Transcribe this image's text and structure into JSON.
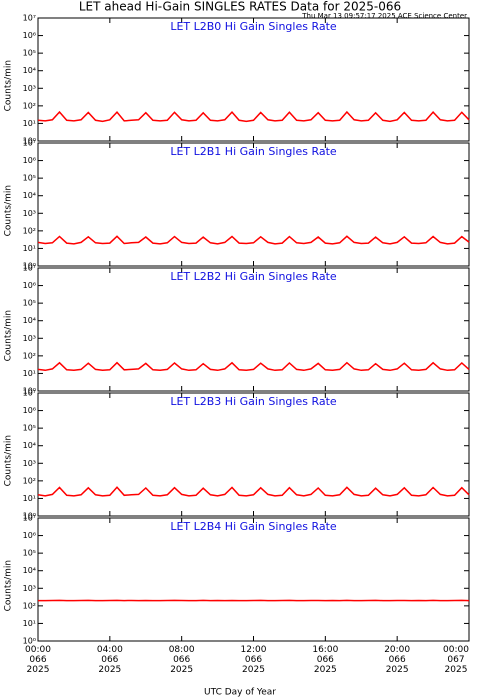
{
  "title": "LET ahead Hi-Gain SINGLES RATES Data for 2025-066",
  "timestamp": "Thu Mar 13 09:57:17 2025 ACE Science Center",
  "xlabel": "UTC Day of Year",
  "chart_data": [
    {
      "type": "line",
      "title": "LET L2B0 Hi Gain Singles Rate",
      "ylabel": "Counts/min",
      "color": "#ff0000",
      "log_y": true,
      "xlim": [
        0,
        24
      ],
      "ylim": [
        1,
        10000000
      ],
      "yticks": [
        {
          "value": 1,
          "label": "10⁰"
        },
        {
          "value": 10,
          "label": "10¹"
        },
        {
          "value": 100,
          "label": "10²"
        },
        {
          "value": 1000,
          "label": "10³"
        },
        {
          "value": 10000,
          "label": "10⁴"
        },
        {
          "value": 100000,
          "label": "10⁵"
        },
        {
          "value": 1000000,
          "label": "10⁶"
        },
        {
          "value": 10000000,
          "label": "10⁷"
        }
      ],
      "x": [
        0,
        0.4,
        0.8,
        1.2,
        1.6,
        2,
        2.4,
        2.8,
        3.2,
        3.6,
        4,
        4.4,
        4.8,
        5.2,
        5.6,
        6,
        6.4,
        6.8,
        7.2,
        7.6,
        8,
        8.4,
        8.8,
        9.2,
        9.6,
        10,
        10.4,
        10.8,
        11.2,
        11.6,
        12,
        12.4,
        12.8,
        13.2,
        13.6,
        14,
        14.4,
        14.8,
        15.2,
        15.6,
        16,
        16.4,
        16.8,
        17.2,
        17.6,
        18,
        18.4,
        18.8,
        19.2,
        19.6,
        20,
        20.4,
        20.8,
        21.2,
        21.6,
        22,
        22.4,
        22.8,
        23.2,
        23.6,
        24
      ],
      "values": [
        15,
        14,
        16,
        45,
        15,
        14,
        16,
        42,
        15,
        13,
        16,
        44,
        14,
        15,
        16,
        41,
        15,
        14,
        15,
        43,
        16,
        14,
        15,
        40,
        15,
        14,
        16,
        44,
        15,
        13,
        15,
        42,
        16,
        14,
        15,
        43,
        15,
        14,
        16,
        41,
        15,
        14,
        15,
        45,
        16,
        14,
        15,
        40,
        15,
        13,
        16,
        42,
        15,
        14,
        15,
        44,
        16,
        14,
        15,
        43,
        16
      ]
    },
    {
      "type": "line",
      "title": "LET L2B1 Hi Gain Singles Rate",
      "ylabel": "Counts/min",
      "color": "#ff0000",
      "log_y": true,
      "xlim": [
        0,
        24
      ],
      "ylim": [
        1,
        10000000
      ],
      "yticks": [
        {
          "value": 1,
          "label": "10⁰"
        },
        {
          "value": 10,
          "label": "10¹"
        },
        {
          "value": 100,
          "label": "10²"
        },
        {
          "value": 1000,
          "label": "10³"
        },
        {
          "value": 10000,
          "label": "10⁴"
        },
        {
          "value": 100000,
          "label": "10⁵"
        },
        {
          "value": 1000000,
          "label": "10⁶"
        },
        {
          "value": 10000000,
          "label": "10⁷"
        }
      ],
      "x": [
        0,
        0.4,
        0.8,
        1.2,
        1.6,
        2,
        2.4,
        2.8,
        3.2,
        3.6,
        4,
        4.4,
        4.8,
        5.2,
        5.6,
        6,
        6.4,
        6.8,
        7.2,
        7.6,
        8,
        8.4,
        8.8,
        9.2,
        9.6,
        10,
        10.4,
        10.8,
        11.2,
        11.6,
        12,
        12.4,
        12.8,
        13.2,
        13.6,
        14,
        14.4,
        14.8,
        15.2,
        15.6,
        16,
        16.4,
        16.8,
        17.2,
        17.6,
        18,
        18.4,
        18.8,
        19.2,
        19.6,
        20,
        20.4,
        20.8,
        21.2,
        21.6,
        22,
        22.4,
        22.8,
        23.2,
        23.6,
        24
      ],
      "values": [
        22,
        19,
        21,
        48,
        20,
        18,
        22,
        46,
        21,
        19,
        20,
        49,
        19,
        21,
        22,
        45,
        20,
        18,
        21,
        47,
        22,
        19,
        20,
        44,
        21,
        18,
        22,
        48,
        20,
        19,
        21,
        46,
        22,
        18,
        20,
        47,
        21,
        19,
        22,
        45,
        20,
        18,
        21,
        49,
        22,
        19,
        20,
        44,
        21,
        18,
        22,
        46,
        20,
        19,
        21,
        48,
        22,
        18,
        20,
        47,
        23
      ]
    },
    {
      "type": "line",
      "title": "LET L2B2 Hi Gain Singles Rate",
      "ylabel": "Counts/min",
      "color": "#ff0000",
      "log_y": true,
      "xlim": [
        0,
        24
      ],
      "ylim": [
        1,
        10000000
      ],
      "yticks": [
        {
          "value": 1,
          "label": "10⁰"
        },
        {
          "value": 10,
          "label": "10¹"
        },
        {
          "value": 100,
          "label": "10²"
        },
        {
          "value": 1000,
          "label": "10³"
        },
        {
          "value": 10000,
          "label": "10⁴"
        },
        {
          "value": 100000,
          "label": "10⁵"
        },
        {
          "value": 1000000,
          "label": "10⁶"
        },
        {
          "value": 10000000,
          "label": "10⁷"
        }
      ],
      "x": [
        0,
        0.4,
        0.8,
        1.2,
        1.6,
        2,
        2.4,
        2.8,
        3.2,
        3.6,
        4,
        4.4,
        4.8,
        5.2,
        5.6,
        6,
        6.4,
        6.8,
        7.2,
        7.6,
        8,
        8.4,
        8.8,
        9.2,
        9.6,
        10,
        10.4,
        10.8,
        11.2,
        11.6,
        12,
        12.4,
        12.8,
        13.2,
        13.6,
        14,
        14.4,
        14.8,
        15.2,
        15.6,
        16,
        16.4,
        16.8,
        17.2,
        17.6,
        18,
        18.4,
        18.8,
        19.2,
        19.6,
        20,
        20.4,
        20.8,
        21.2,
        21.6,
        22,
        22.4,
        22.8,
        23.2,
        23.6,
        24
      ],
      "values": [
        17,
        15,
        18,
        40,
        16,
        15,
        17,
        38,
        17,
        15,
        16,
        41,
        16,
        17,
        18,
        37,
        16,
        15,
        17,
        39,
        18,
        15,
        16,
        36,
        17,
        15,
        18,
        40,
        16,
        15,
        17,
        38,
        18,
        15,
        16,
        39,
        17,
        15,
        18,
        37,
        16,
        15,
        17,
        41,
        18,
        15,
        16,
        36,
        17,
        15,
        18,
        38,
        16,
        15,
        17,
        40,
        18,
        15,
        16,
        39,
        17
      ]
    },
    {
      "type": "line",
      "title": "LET L2B3 Hi Gain Singles Rate",
      "ylabel": "Counts/min",
      "color": "#ff0000",
      "log_y": true,
      "xlim": [
        0,
        24
      ],
      "ylim": [
        1,
        10000000
      ],
      "yticks": [
        {
          "value": 1,
          "label": "10⁰"
        },
        {
          "value": 10,
          "label": "10¹"
        },
        {
          "value": 100,
          "label": "10²"
        },
        {
          "value": 1000,
          "label": "10³"
        },
        {
          "value": 10000,
          "label": "10⁴"
        },
        {
          "value": 100000,
          "label": "10⁵"
        },
        {
          "value": 1000000,
          "label": "10⁶"
        },
        {
          "value": 10000000,
          "label": "10⁷"
        }
      ],
      "x": [
        0,
        0.4,
        0.8,
        1.2,
        1.6,
        2,
        2.4,
        2.8,
        3.2,
        3.6,
        4,
        4.4,
        4.8,
        5.2,
        5.6,
        6,
        6.4,
        6.8,
        7.2,
        7.6,
        8,
        8.4,
        8.8,
        9.2,
        9.6,
        10,
        10.4,
        10.8,
        11.2,
        11.6,
        12,
        12.4,
        12.8,
        13.2,
        13.6,
        14,
        14.4,
        14.8,
        15.2,
        15.6,
        16,
        16.4,
        16.8,
        17.2,
        17.6,
        18,
        18.4,
        18.8,
        19.2,
        19.6,
        20,
        20.4,
        20.8,
        21.2,
        21.6,
        22,
        22.4,
        22.8,
        23.2,
        23.6,
        24
      ],
      "values": [
        16,
        14,
        17,
        42,
        15,
        14,
        16,
        40,
        16,
        14,
        15,
        43,
        15,
        16,
        17,
        39,
        15,
        14,
        16,
        41,
        17,
        14,
        15,
        38,
        16,
        14,
        17,
        42,
        15,
        14,
        16,
        40,
        17,
        14,
        15,
        41,
        16,
        14,
        17,
        39,
        15,
        14,
        16,
        43,
        17,
        14,
        15,
        38,
        16,
        14,
        17,
        40,
        15,
        14,
        16,
        42,
        17,
        14,
        15,
        41,
        16
      ]
    },
    {
      "type": "line",
      "title": "LET L2B4 Hi Gain Singles Rate",
      "ylabel": "Counts/min",
      "color": "#ff0000",
      "log_y": true,
      "xlim": [
        0,
        24
      ],
      "ylim": [
        1,
        10000000
      ],
      "yticks": [
        {
          "value": 1,
          "label": "10⁰"
        },
        {
          "value": 10,
          "label": "10¹"
        },
        {
          "value": 100,
          "label": "10²"
        },
        {
          "value": 1000,
          "label": "10³"
        },
        {
          "value": 10000,
          "label": "10⁴"
        },
        {
          "value": 100000,
          "label": "10⁵"
        },
        {
          "value": 1000000,
          "label": "10⁶"
        },
        {
          "value": 10000000,
          "label": "10⁷"
        }
      ],
      "xticks": [
        {
          "value": 0,
          "label": "00:00\n066\n2025"
        },
        {
          "value": 4,
          "label": "04:00\n066\n2025"
        },
        {
          "value": 8,
          "label": "08:00\n066\n2025"
        },
        {
          "value": 12,
          "label": "12:00\n066\n2025"
        },
        {
          "value": 16,
          "label": "16:00\n066\n2025"
        },
        {
          "value": 20,
          "label": "20:00\n066\n2025"
        },
        {
          "value": 24,
          "label": "00:00\n067\n2025"
        }
      ],
      "x": [
        0,
        0.4,
        0.8,
        1.2,
        1.6,
        2,
        2.4,
        2.8,
        3.2,
        3.6,
        4,
        4.4,
        4.8,
        5.2,
        5.6,
        6,
        6.4,
        6.8,
        7.2,
        7.6,
        8,
        8.4,
        8.8,
        9.2,
        9.6,
        10,
        10.4,
        10.8,
        11.2,
        11.6,
        12,
        12.4,
        12.8,
        13.2,
        13.6,
        14,
        14.4,
        14.8,
        15.2,
        15.6,
        16,
        16.4,
        16.8,
        17.2,
        17.6,
        18,
        18.4,
        18.8,
        19.2,
        19.6,
        20,
        20.4,
        20.8,
        21.2,
        21.6,
        22,
        22.4,
        22.8,
        23.2,
        23.6,
        24
      ],
      "values": [
        200,
        198,
        202,
        205,
        199,
        200,
        201,
        204,
        198,
        200,
        202,
        205,
        199,
        201,
        200,
        203,
        198,
        200,
        202,
        204,
        201,
        199,
        200,
        205,
        198,
        201,
        200,
        203,
        199,
        200,
        202,
        204,
        200,
        198,
        201,
        205,
        199,
        200,
        202,
        203,
        198,
        201,
        200,
        205,
        199,
        200,
        201,
        204,
        198,
        200,
        202,
        203,
        199,
        201,
        200,
        205,
        198,
        200,
        201,
        204,
        200
      ]
    }
  ]
}
